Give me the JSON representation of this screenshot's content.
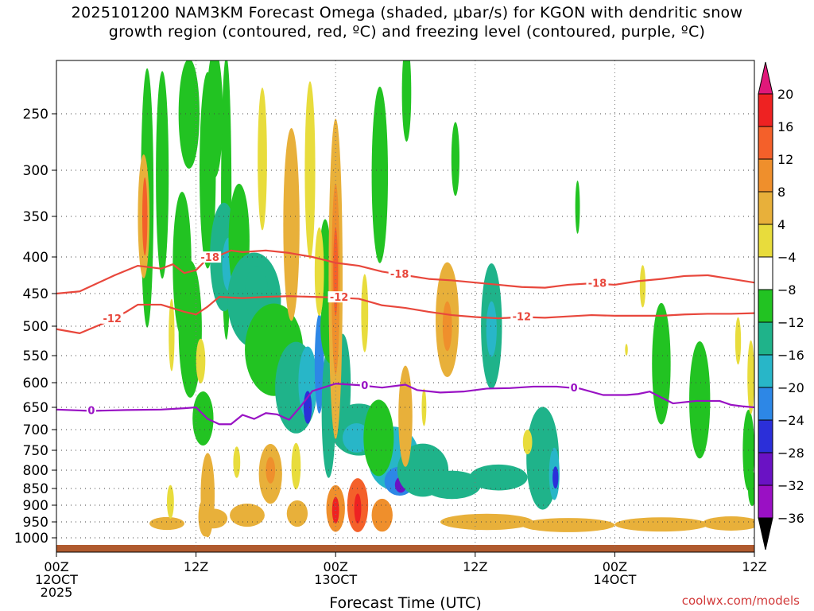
{
  "title": {
    "line1": "2025101200 NAM3KM Forecast Omega (shaded, μbar/s) for KGON with dendritic snow",
    "line2": "growth region (contoured, red, ºC) and freezing level (contoured, purple, ºC)"
  },
  "footer": {
    "credit": "coolwx.com/models"
  },
  "chart_data": {
    "type": "heatmap",
    "title": "2025101200 NAM3KM Forecast Omega (shaded, μbar/s) for KGON with dendritic snow growth region (contoured, red, ºC) and freezing level (contoured, purple, ºC)",
    "xlabel": "Forecast Time (UTC)",
    "ylabel": "",
    "x_range_hours": [
      0,
      60
    ],
    "x_ticks": [
      {
        "hour": 0,
        "line1": "00Z",
        "line2": "12OCT",
        "line3": "2025"
      },
      {
        "hour": 12,
        "line1": "12Z",
        "line2": "",
        "line3": ""
      },
      {
        "hour": 24,
        "line1": "00Z",
        "line2": "13OCT",
        "line3": ""
      },
      {
        "hour": 36,
        "line1": "12Z",
        "line2": "",
        "line3": ""
      },
      {
        "hour": 48,
        "line1": "00Z",
        "line2": "14OCT",
        "line3": ""
      },
      {
        "hour": 60,
        "line1": "12Z",
        "line2": "",
        "line3": ""
      }
    ],
    "y_range_hpa": [
      1030,
      200
    ],
    "y_ticks": [
      250,
      300,
      350,
      400,
      450,
      500,
      550,
      600,
      650,
      700,
      750,
      800,
      850,
      900,
      950,
      1000
    ],
    "colorbar": {
      "labels": [
        "20",
        "16",
        "12",
        "8",
        "4",
        "−4",
        "−8",
        "−12",
        "−16",
        "−20",
        "−24",
        "−28",
        "−32",
        "−36"
      ],
      "colors": [
        "#ee2222",
        "#f4602a",
        "#ef8f2c",
        "#e8b03a",
        "#e8dc3c",
        "#ffffff",
        "#22c322",
        "#1fb38a",
        "#28b6c8",
        "#2d87e6",
        "#2b2fd9",
        "#6a12c4",
        "#9a10c4",
        "#aaaaaa"
      ],
      "top_arrow_color": "#e0187a",
      "bottom_arrow_color": "#000000"
    },
    "contours": {
      "dgz_minus18": {
        "label": "-18",
        "color": "#e8473c",
        "points": [
          [
            0,
            450
          ],
          [
            2,
            447
          ],
          [
            5,
            425
          ],
          [
            7,
            412
          ],
          [
            9,
            416
          ],
          [
            10,
            410
          ],
          [
            11,
            422
          ],
          [
            12,
            418
          ],
          [
            13,
            402
          ],
          [
            14,
            398
          ],
          [
            15,
            392
          ],
          [
            16,
            394
          ],
          [
            18,
            392
          ],
          [
            20,
            395
          ],
          [
            22,
            400
          ],
          [
            24,
            408
          ],
          [
            26,
            412
          ],
          [
            28,
            420
          ],
          [
            30,
            425
          ],
          [
            32,
            430
          ],
          [
            34,
            432
          ],
          [
            36,
            435
          ],
          [
            38,
            438
          ],
          [
            40,
            441
          ],
          [
            42,
            442
          ],
          [
            44,
            438
          ],
          [
            46,
            436
          ],
          [
            48,
            438
          ],
          [
            50,
            433
          ],
          [
            52,
            430
          ],
          [
            54,
            426
          ],
          [
            56,
            425
          ],
          [
            58,
            430
          ],
          [
            60,
            435
          ]
        ],
        "label_hours": [
          13.2,
          29.5,
          46.5
        ]
      },
      "dgz_minus12": {
        "label": "-12",
        "color": "#e8473c",
        "points": [
          [
            0,
            505
          ],
          [
            2,
            512
          ],
          [
            4,
            496
          ],
          [
            6,
            478
          ],
          [
            7,
            467
          ],
          [
            9,
            467
          ],
          [
            11,
            478
          ],
          [
            12,
            482
          ],
          [
            13,
            470
          ],
          [
            14,
            455
          ],
          [
            16,
            457
          ],
          [
            18,
            455
          ],
          [
            20,
            454
          ],
          [
            22,
            455
          ],
          [
            24,
            456
          ],
          [
            26,
            458
          ],
          [
            28,
            468
          ],
          [
            30,
            472
          ],
          [
            32,
            478
          ],
          [
            34,
            483
          ],
          [
            36,
            486
          ],
          [
            38,
            488
          ],
          [
            40,
            486
          ],
          [
            42,
            487
          ],
          [
            44,
            485
          ],
          [
            46,
            483
          ],
          [
            48,
            484
          ],
          [
            50,
            484
          ],
          [
            52,
            484
          ],
          [
            54,
            482
          ],
          [
            56,
            481
          ],
          [
            58,
            481
          ],
          [
            60,
            480
          ]
        ],
        "label_hours": [
          4.8,
          24.3,
          40.0
        ]
      },
      "freezing": {
        "label": "0",
        "color": "#9912c4",
        "points": [
          [
            0,
            655
          ],
          [
            3,
            658
          ],
          [
            6,
            656
          ],
          [
            9,
            655
          ],
          [
            11,
            652
          ],
          [
            12,
            650
          ],
          [
            13,
            676
          ],
          [
            14,
            688
          ],
          [
            15,
            688
          ],
          [
            16,
            667
          ],
          [
            17,
            676
          ],
          [
            18,
            663
          ],
          [
            19,
            666
          ],
          [
            20,
            678
          ],
          [
            21,
            648
          ],
          [
            22,
            617
          ],
          [
            24,
            602
          ],
          [
            26,
            605
          ],
          [
            28,
            610
          ],
          [
            30,
            604
          ],
          [
            31,
            615
          ],
          [
            33,
            620
          ],
          [
            35,
            618
          ],
          [
            37,
            612
          ],
          [
            39,
            611
          ],
          [
            41,
            608
          ],
          [
            43,
            608
          ],
          [
            45,
            612
          ],
          [
            47,
            625
          ],
          [
            49,
            625
          ],
          [
            50,
            623
          ],
          [
            51,
            618
          ],
          [
            52,
            630
          ],
          [
            53,
            642
          ],
          [
            55,
            637
          ],
          [
            57,
            637
          ],
          [
            58,
            645
          ],
          [
            59,
            648
          ],
          [
            60,
            650
          ]
        ],
        "label_hours": [
          3.0,
          26.5,
          44.5
        ]
      }
    },
    "omega_cells": [
      {
        "t": 7.8,
        "p": 330,
        "rt": 0.55,
        "rp": 160,
        "v": -5
      },
      {
        "t": 9.1,
        "p": 305,
        "rt": 0.55,
        "rp": 110,
        "v": -6
      },
      {
        "t": 11.4,
        "p": 250,
        "rt": 0.9,
        "rp": 50,
        "v": -5
      },
      {
        "t": 13,
        "p": 300,
        "rt": 0.7,
        "rp": 100,
        "v": -5
      },
      {
        "t": 14.6,
        "p": 330,
        "rt": 0.45,
        "rp": 200,
        "v": -5
      },
      {
        "t": 10.8,
        "p": 410,
        "rt": 0.8,
        "rp": 95,
        "v": -6
      },
      {
        "t": 13.6,
        "p": 250,
        "rt": 0.7,
        "rp": 70,
        "v": -5
      },
      {
        "t": 11.5,
        "p": 505,
        "rt": 1.0,
        "rp": 110,
        "v": -6
      },
      {
        "t": 14.4,
        "p": 400,
        "rt": 1.2,
        "rp": 70,
        "v": -9
      },
      {
        "t": 14.8,
        "p": 410,
        "rt": 0.55,
        "rp": 35,
        "v": -14
      },
      {
        "t": 15.7,
        "p": 380,
        "rt": 0.9,
        "rp": 70,
        "v": -7
      },
      {
        "t": 17,
        "p": 460,
        "rt": 2.3,
        "rp": 70,
        "v": -8
      },
      {
        "t": 17.2,
        "p": 450,
        "rt": 1.0,
        "rp": 40,
        "v": -11
      },
      {
        "t": 18.7,
        "p": 540,
        "rt": 2.5,
        "rp": 80,
        "v": -7
      },
      {
        "t": 20.6,
        "p": 610,
        "rt": 1.8,
        "rp": 90,
        "v": -9
      },
      {
        "t": 21.6,
        "p": 600,
        "rt": 0.8,
        "rp": 70,
        "v": -13
      },
      {
        "t": 21.6,
        "p": 650,
        "rt": 0.35,
        "rp": 35,
        "v": -21
      },
      {
        "t": 22.6,
        "p": 565,
        "rt": 0.4,
        "rp": 90,
        "v": -19
      },
      {
        "t": 23.4,
        "p": 660,
        "rt": 0.6,
        "rp": 140,
        "v": -9
      },
      {
        "t": 24.6,
        "p": 605,
        "rt": 0.7,
        "rp": 100,
        "v": -8
      },
      {
        "t": 26,
        "p": 700,
        "rt": 2.4,
        "rp": 60,
        "v": -10
      },
      {
        "t": 25.8,
        "p": 720,
        "rt": 1.2,
        "rp": 35,
        "v": -15
      },
      {
        "t": 29,
        "p": 770,
        "rt": 2.2,
        "rp": 80,
        "v": -12
      },
      {
        "t": 29.5,
        "p": 830,
        "rt": 1.3,
        "rp": 40,
        "v": -19
      },
      {
        "t": 29.6,
        "p": 840,
        "rt": 0.5,
        "rp": 22,
        "v": -25
      },
      {
        "t": 31.5,
        "p": 800,
        "rt": 2.2,
        "rp": 70,
        "v": -9
      },
      {
        "t": 34,
        "p": 840,
        "rt": 2.5,
        "rp": 40,
        "v": -9
      },
      {
        "t": 38,
        "p": 820,
        "rt": 2.5,
        "rp": 35,
        "v": -9
      },
      {
        "t": 41.8,
        "p": 770,
        "rt": 1.4,
        "rp": 130,
        "v": -8
      },
      {
        "t": 42.8,
        "p": 810,
        "rt": 0.45,
        "rp": 70,
        "v": -15
      },
      {
        "t": 42.9,
        "p": 820,
        "rt": 0.25,
        "rp": 30,
        "v": -21
      },
      {
        "t": 27.7,
        "p": 720,
        "rt": 1.3,
        "rp": 90,
        "v": -7
      },
      {
        "t": 23.6,
        "p": 500,
        "rt": 0.9,
        "rp": 60,
        "v": -6
      },
      {
        "t": 23.1,
        "p": 410,
        "rt": 0.5,
        "rp": 60,
        "v": -7
      },
      {
        "t": 27.8,
        "p": 305,
        "rt": 0.7,
        "rp": 90,
        "v": -6
      },
      {
        "t": 30.1,
        "p": 230,
        "rt": 0.4,
        "rp": 60,
        "v": -5
      },
      {
        "t": 34.3,
        "p": 290,
        "rt": 0.35,
        "rp": 35,
        "v": -5
      },
      {
        "t": 37.4,
        "p": 500,
        "rt": 0.9,
        "rp": 100,
        "v": -8
      },
      {
        "t": 37.4,
        "p": 505,
        "rt": 0.45,
        "rp": 45,
        "v": -13
      },
      {
        "t": 44.8,
        "p": 340,
        "rt": 0.2,
        "rp": 30,
        "v": -5
      },
      {
        "t": 52,
        "p": 565,
        "rt": 0.8,
        "rp": 110,
        "v": -6
      },
      {
        "t": 55.3,
        "p": 635,
        "rt": 0.9,
        "rp": 120,
        "v": -6
      },
      {
        "t": 59.5,
        "p": 750,
        "rt": 0.5,
        "rp": 100,
        "v": -6
      },
      {
        "t": 59.8,
        "p": 850,
        "rt": 0.35,
        "rp": 50,
        "v": -7
      },
      {
        "t": 12.6,
        "p": 675,
        "rt": 0.9,
        "rp": 60,
        "v": -6
      },
      {
        "t": 7.5,
        "p": 350,
        "rt": 0.5,
        "rp": 70,
        "v": 6
      },
      {
        "t": 7.6,
        "p": 350,
        "rt": 0.22,
        "rp": 45,
        "v": 13
      },
      {
        "t": 9.9,
        "p": 515,
        "rt": 0.25,
        "rp": 60,
        "v": 5
      },
      {
        "t": 17.7,
        "p": 290,
        "rt": 0.4,
        "rp": 70,
        "v": 5
      },
      {
        "t": 20.2,
        "p": 360,
        "rt": 0.7,
        "rp": 110,
        "v": 6
      },
      {
        "t": 21.8,
        "p": 300,
        "rt": 0.45,
        "rp": 90,
        "v": 5
      },
      {
        "t": 22.6,
        "p": 420,
        "rt": 0.4,
        "rp": 60,
        "v": 5
      },
      {
        "t": 24,
        "p": 430,
        "rt": 0.6,
        "rp": 210,
        "v": 6
      },
      {
        "t": 24,
        "p": 430,
        "rt": 0.35,
        "rp": 130,
        "v": 9
      },
      {
        "t": 24,
        "p": 420,
        "rt": 0.2,
        "rp": 60,
        "v": 13
      },
      {
        "t": 26.5,
        "p": 480,
        "rt": 0.3,
        "rp": 60,
        "v": 5
      },
      {
        "t": 33.6,
        "p": 490,
        "rt": 1.0,
        "rp": 90,
        "v": 6
      },
      {
        "t": 33.6,
        "p": 500,
        "rt": 0.4,
        "rp": 40,
        "v": 10
      },
      {
        "t": 30,
        "p": 670,
        "rt": 0.6,
        "rp": 110,
        "v": 6
      },
      {
        "t": 31.6,
        "p": 650,
        "rt": 0.2,
        "rp": 40,
        "v": 5
      },
      {
        "t": 12.4,
        "p": 560,
        "rt": 0.4,
        "rp": 40,
        "v": 5
      },
      {
        "t": 13,
        "p": 870,
        "rt": 0.6,
        "rp": 120,
        "v": 6
      },
      {
        "t": 15.5,
        "p": 780,
        "rt": 0.3,
        "rp": 40,
        "v": 5
      },
      {
        "t": 18.4,
        "p": 810,
        "rt": 1.0,
        "rp": 80,
        "v": 7
      },
      {
        "t": 18.4,
        "p": 800,
        "rt": 0.4,
        "rp": 35,
        "v": 10
      },
      {
        "t": 20.6,
        "p": 790,
        "rt": 0.4,
        "rp": 60,
        "v": 5
      },
      {
        "t": 24,
        "p": 910,
        "rt": 0.8,
        "rp": 70,
        "v": 11
      },
      {
        "t": 24,
        "p": 915,
        "rt": 0.3,
        "rp": 40,
        "v": 18
      },
      {
        "t": 25.9,
        "p": 900,
        "rt": 0.9,
        "rp": 80,
        "v": 12
      },
      {
        "t": 25.9,
        "p": 910,
        "rt": 0.3,
        "rp": 45,
        "v": 19
      },
      {
        "t": 28,
        "p": 930,
        "rt": 0.9,
        "rp": 50,
        "v": 10
      },
      {
        "t": 20.7,
        "p": 925,
        "rt": 0.9,
        "rp": 40,
        "v": 6
      },
      {
        "t": 16.4,
        "p": 930,
        "rt": 1.5,
        "rp": 35,
        "v": 6
      },
      {
        "t": 13.5,
        "p": 940,
        "rt": 1.2,
        "rp": 30,
        "v": 7
      },
      {
        "t": 9.5,
        "p": 955,
        "rt": 1.5,
        "rp": 20,
        "v": 6
      },
      {
        "t": 9.8,
        "p": 890,
        "rt": 0.3,
        "rp": 50,
        "v": 5
      },
      {
        "t": 12.8,
        "p": 935,
        "rt": 0.6,
        "rp": 60,
        "v": 7
      },
      {
        "t": 37,
        "p": 950,
        "rt": 4,
        "rp": 25,
        "v": 6
      },
      {
        "t": 44,
        "p": 960,
        "rt": 4,
        "rp": 22,
        "v": 6
      },
      {
        "t": 52,
        "p": 958,
        "rt": 4,
        "rp": 22,
        "v": 6
      },
      {
        "t": 58,
        "p": 955,
        "rt": 2.5,
        "rp": 22,
        "v": 6
      },
      {
        "t": 50.4,
        "p": 440,
        "rt": 0.25,
        "rp": 30,
        "v": 5
      },
      {
        "t": 58.6,
        "p": 525,
        "rt": 0.25,
        "rp": 40,
        "v": 5
      },
      {
        "t": 59.7,
        "p": 590,
        "rt": 0.3,
        "rp": 70,
        "v": 5
      },
      {
        "t": 49,
        "p": 540,
        "rt": 0.12,
        "rp": 10,
        "v": 5
      },
      {
        "t": 40.5,
        "p": 730,
        "rt": 0.4,
        "rp": 30,
        "v": 5
      }
    ],
    "surface": {
      "color": "#b05a2e",
      "p_top": 1015
    }
  }
}
